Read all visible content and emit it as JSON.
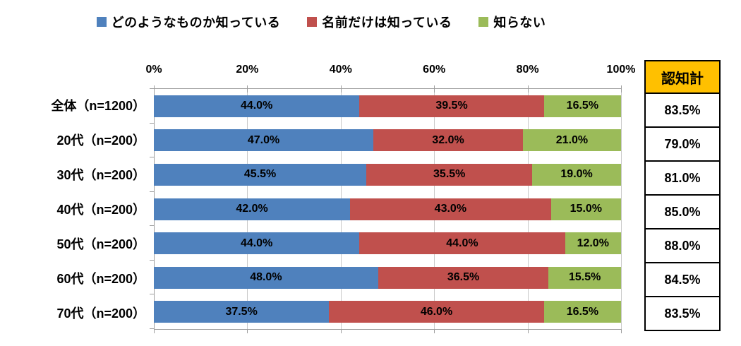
{
  "chart_data": {
    "type": "bar",
    "orientation": "horizontal",
    "stacked": true,
    "title": "",
    "categories": [
      "全体（n=1200）",
      "20代（n=200）",
      "30代（n=200）",
      "40代（n=200）",
      "50代（n=200）",
      "60代（n=200）",
      "70代（n=200）"
    ],
    "series": [
      {
        "name": "どのようなものか知っている",
        "color": "#4F81BD",
        "values": [
          44.0,
          47.0,
          45.5,
          42.0,
          44.0,
          48.0,
          37.5
        ]
      },
      {
        "name": "名前だけは知っている",
        "color": "#C0504D",
        "values": [
          39.5,
          32.0,
          35.5,
          43.0,
          44.0,
          36.5,
          46.0
        ]
      },
      {
        "name": "知らない",
        "color": "#9BBB59",
        "values": [
          16.5,
          21.0,
          19.0,
          15.0,
          12.0,
          15.5,
          16.5
        ]
      }
    ],
    "xlim": [
      0,
      100
    ],
    "tick_labels": [
      "0%",
      "20%",
      "40%",
      "60%",
      "80%",
      "100%"
    ],
    "grid": true,
    "legend_position": "top",
    "value_suffix": "%",
    "summary_column": {
      "header": "認知計",
      "header_bg": "#FFC000",
      "values": [
        83.5,
        79.0,
        81.0,
        85.0,
        88.0,
        84.5,
        83.5
      ]
    }
  },
  "colors": {
    "grid": "#C9C9C9",
    "axis": "#9E9E9E",
    "text": "#000000",
    "background": "#FFFFFF"
  }
}
